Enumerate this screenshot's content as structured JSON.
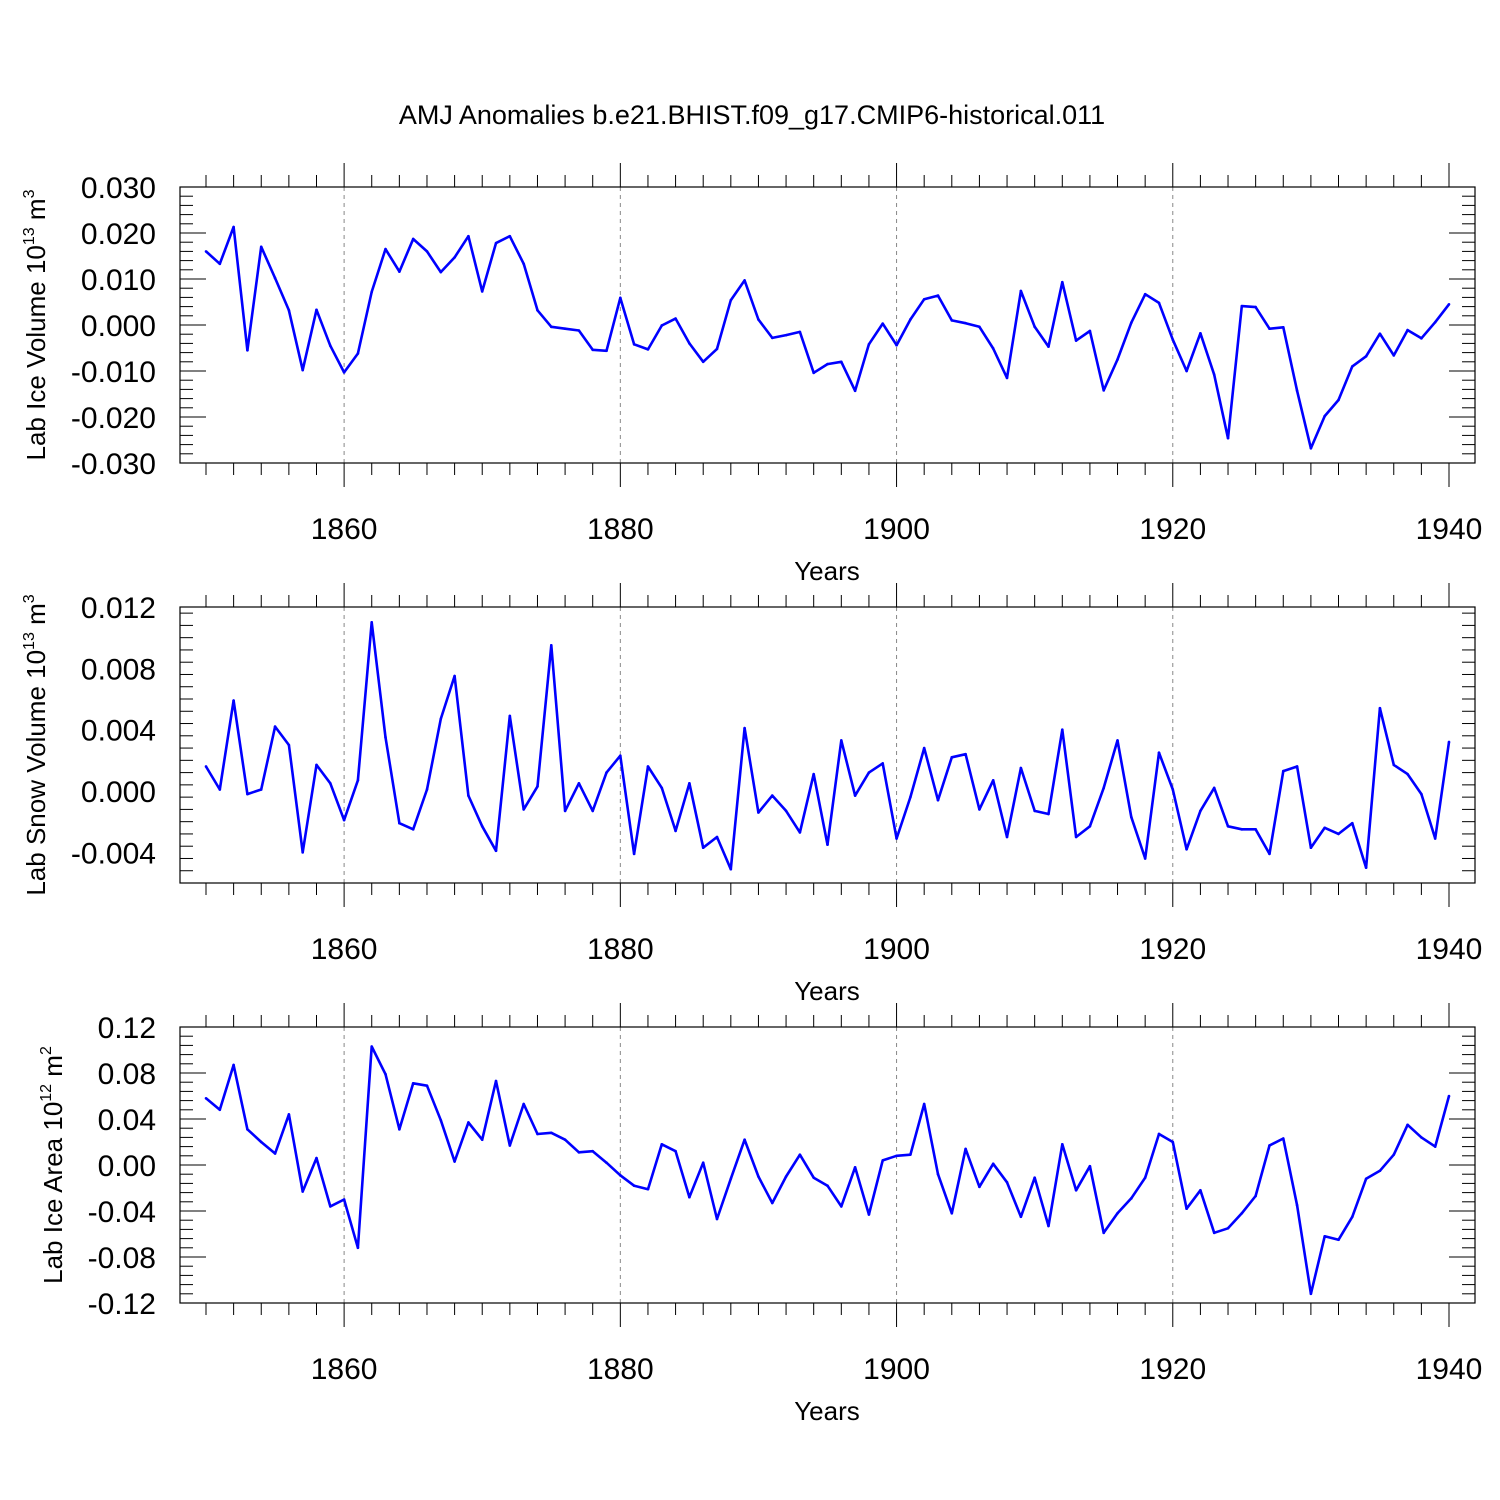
{
  "title": "AMJ Anomalies b.e21.BHIST.f09_g17.CMIP6-historical.011",
  "line_color": "#0000ff",
  "chart_data": [
    {
      "type": "line",
      "name": "ice-volume",
      "ylabel_main": "Lab Ice Volume 10",
      "ylabel_sup": "13",
      "ylabel_unit": " m",
      "ylabel_unit_sup": "3",
      "xlabel": "Years",
      "xlim": [
        1850,
        1940
      ],
      "ylim": [
        -0.03,
        0.03
      ],
      "yticks": [
        -0.03,
        -0.02,
        -0.01,
        0.0,
        0.01,
        0.02,
        0.03
      ],
      "ytick_labels": [
        "-0.030",
        "-0.020",
        "-0.010",
        "0.000",
        "0.010",
        "0.020",
        "0.030"
      ],
      "xticks": [
        1860,
        1880,
        1900,
        1920,
        1940
      ],
      "xtick_labels": [
        "1860",
        "1880",
        "1900",
        "1920",
        "1940"
      ],
      "x_start": 1850,
      "values": [
        0.016,
        0.0133,
        0.0213,
        -0.0055,
        0.017,
        0.0102,
        0.0032,
        -0.0098,
        0.0033,
        -0.0045,
        -0.0103,
        -0.0062,
        0.0072,
        0.0165,
        0.0116,
        0.0187,
        0.016,
        0.0115,
        0.0147,
        0.0193,
        0.0073,
        0.0178,
        0.0193,
        0.0133,
        0.0032,
        -0.0004,
        -0.0008,
        -0.0012,
        -0.0054,
        -0.0056,
        0.0059,
        -0.0042,
        -0.0053,
        -0.0001,
        0.0014,
        -0.004,
        -0.008,
        -0.0052,
        0.0054,
        0.0097,
        0.0012,
        -0.0028,
        -0.0022,
        -0.0015,
        -0.0104,
        -0.0085,
        -0.008,
        -0.0143,
        -0.0042,
        0.0003,
        -0.0044,
        0.0012,
        0.0056,
        0.0064,
        0.001,
        0.0004,
        -0.0004,
        -0.0051,
        -0.0115,
        0.0074,
        -0.0004,
        -0.0047,
        0.0093,
        -0.0034,
        -0.0013,
        -0.0142,
        -0.0075,
        0.0005,
        0.0067,
        0.0048,
        -0.0032,
        -0.01,
        -0.0018,
        -0.0108,
        -0.0246,
        0.0041,
        0.0039,
        -0.0008,
        -0.0005,
        -0.0143,
        -0.0268,
        -0.0198,
        -0.0163,
        -0.009,
        -0.0068,
        -0.0019,
        -0.0066,
        -0.0011,
        -0.0029,
        0.0006,
        0.0045
      ]
    },
    {
      "type": "line",
      "name": "snow-volume",
      "ylabel_main": "Lab Snow Volume 10",
      "ylabel_sup": "13",
      "ylabel_unit": " m",
      "ylabel_unit_sup": "3",
      "xlabel": "Years",
      "xlim": [
        1850,
        1940
      ],
      "ylim": [
        -0.006,
        0.012
      ],
      "yticks": [
        -0.004,
        0.0,
        0.004,
        0.008,
        0.012
      ],
      "ytick_labels": [
        "-0.004",
        "0.000",
        "0.004",
        "0.008",
        "0.012"
      ],
      "xticks": [
        1860,
        1880,
        1900,
        1920,
        1940
      ],
      "xtick_labels": [
        "1860",
        "1880",
        "1900",
        "1920",
        "1940"
      ],
      "x_start": 1850,
      "values": [
        0.0016,
        0.0001,
        0.0059,
        -0.0002,
        0.0001,
        0.0042,
        0.003,
        -0.004,
        0.0017,
        0.0005,
        -0.0019,
        0.0007,
        0.011,
        0.0035,
        -0.0021,
        -0.0025,
        0.0001,
        0.0047,
        0.0075,
        -0.0003,
        -0.0023,
        -0.0039,
        0.0049,
        -0.0012,
        0.0003,
        0.0095,
        -0.0013,
        0.0005,
        -0.0013,
        0.0012,
        0.0023,
        -0.0041,
        0.0016,
        0.0002,
        -0.0026,
        0.0005,
        -0.0037,
        -0.003,
        -0.0051,
        0.0041,
        -0.0014,
        -0.0003,
        -0.0013,
        -0.0027,
        0.0011,
        -0.0035,
        0.0033,
        -0.0003,
        0.0012,
        0.0018,
        -0.0031,
        -0.0004,
        0.0028,
        -0.0006,
        0.0022,
        0.0024,
        -0.0012,
        0.0007,
        -0.003,
        0.0015,
        -0.0013,
        -0.0015,
        0.004,
        -0.003,
        -0.0023,
        0.0002,
        0.0033,
        -0.0017,
        -0.0044,
        0.0025,
        0.0001,
        -0.0038,
        -0.0013,
        0.0002,
        -0.0023,
        -0.0025,
        -0.0025,
        -0.0041,
        0.0013,
        0.0016,
        -0.0037,
        -0.0024,
        -0.0028,
        -0.0021,
        -0.005,
        0.0054,
        0.0017,
        0.0011,
        -0.0002,
        -0.0031,
        0.0032
      ]
    },
    {
      "type": "line",
      "name": "ice-area",
      "ylabel_main": "Lab Ice Area 10",
      "ylabel_sup": "12",
      "ylabel_unit": " m",
      "ylabel_unit_sup": "2",
      "xlabel": "Years",
      "xlim": [
        1850,
        1940
      ],
      "ylim": [
        -0.12,
        0.12
      ],
      "yticks": [
        -0.12,
        -0.08,
        -0.04,
        0.0,
        0.04,
        0.08,
        0.12
      ],
      "ytick_labels": [
        "-0.12",
        "-0.08",
        "-0.04",
        "0.00",
        "0.04",
        "0.08",
        "0.12"
      ],
      "xticks": [
        1860,
        1880,
        1900,
        1920,
        1940
      ],
      "xtick_labels": [
        "1860",
        "1880",
        "1900",
        "1920",
        "1940"
      ],
      "x_start": 1850,
      "values": [
        0.058,
        0.048,
        0.087,
        0.031,
        0.02,
        0.01,
        0.044,
        -0.023,
        0.006,
        -0.036,
        -0.03,
        -0.072,
        0.103,
        0.079,
        0.031,
        0.071,
        0.069,
        0.039,
        0.003,
        0.037,
        0.022,
        0.073,
        0.017,
        0.053,
        0.027,
        0.028,
        0.022,
        0.011,
        0.012,
        0.002,
        -0.009,
        -0.018,
        -0.021,
        0.018,
        0.012,
        -0.028,
        0.002,
        -0.047,
        -0.012,
        0.022,
        -0.01,
        -0.033,
        -0.01,
        0.009,
        -0.011,
        -0.018,
        -0.036,
        -0.002,
        -0.043,
        0.004,
        0.008,
        0.009,
        0.053,
        -0.008,
        -0.042,
        0.014,
        -0.019,
        0.001,
        -0.015,
        -0.045,
        -0.011,
        -0.053,
        0.018,
        -0.022,
        -0.001,
        -0.059,
        -0.042,
        -0.029,
        -0.011,
        0.027,
        0.02,
        -0.038,
        -0.022,
        -0.059,
        -0.055,
        -0.042,
        -0.027,
        0.017,
        0.023,
        -0.035,
        -0.112,
        -0.062,
        -0.065,
        -0.045,
        -0.012,
        -0.005,
        0.009,
        0.035,
        0.024,
        0.016,
        0.06
      ]
    }
  ]
}
